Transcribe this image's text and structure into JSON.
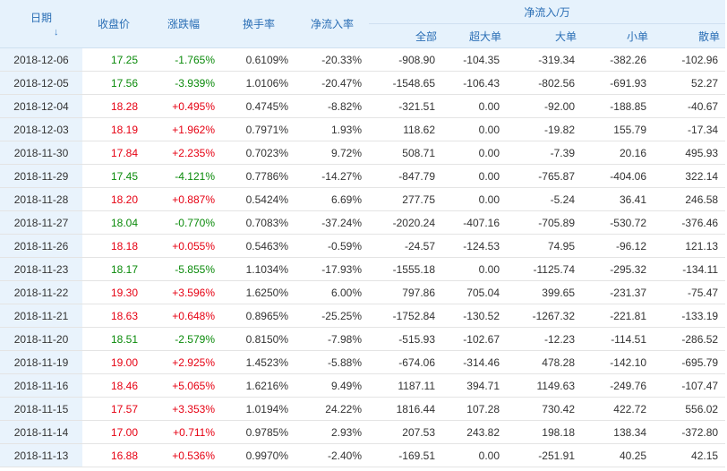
{
  "headers": {
    "date": "日期",
    "sort_icon": "↓",
    "close": "收盘价",
    "change": "涨跌幅",
    "turnover": "换手率",
    "net_ratio": "净流入率",
    "net_group": "净流入/万",
    "all": "全部",
    "xlarge": "超大单",
    "large": "大单",
    "small": "小单",
    "retail": "散单"
  },
  "colors": {
    "up": "#e60012",
    "down": "#0a8a0a",
    "header_bg": "#e6f2fc",
    "header_text": "#2a6eb5"
  },
  "rows": [
    {
      "date": "2018-12-06",
      "close": "17.25",
      "change": "-1.765%",
      "turnover": "0.6109%",
      "ratio": "-20.33%",
      "all": "-908.90",
      "xl": "-104.35",
      "l": "-319.34",
      "s": "-382.26",
      "r": "-102.96",
      "dir": "down"
    },
    {
      "date": "2018-12-05",
      "close": "17.56",
      "change": "-3.939%",
      "turnover": "1.0106%",
      "ratio": "-20.47%",
      "all": "-1548.65",
      "xl": "-106.43",
      "l": "-802.56",
      "s": "-691.93",
      "r": "52.27",
      "dir": "down"
    },
    {
      "date": "2018-12-04",
      "close": "18.28",
      "change": "+0.495%",
      "turnover": "0.4745%",
      "ratio": "-8.82%",
      "all": "-321.51",
      "xl": "0.00",
      "l": "-92.00",
      "s": "-188.85",
      "r": "-40.67",
      "dir": "up"
    },
    {
      "date": "2018-12-03",
      "close": "18.19",
      "change": "+1.962%",
      "turnover": "0.7971%",
      "ratio": "1.93%",
      "all": "118.62",
      "xl": "0.00",
      "l": "-19.82",
      "s": "155.79",
      "r": "-17.34",
      "dir": "up"
    },
    {
      "date": "2018-11-30",
      "close": "17.84",
      "change": "+2.235%",
      "turnover": "0.7023%",
      "ratio": "9.72%",
      "all": "508.71",
      "xl": "0.00",
      "l": "-7.39",
      "s": "20.16",
      "r": "495.93",
      "dir": "up"
    },
    {
      "date": "2018-11-29",
      "close": "17.45",
      "change": "-4.121%",
      "turnover": "0.7786%",
      "ratio": "-14.27%",
      "all": "-847.79",
      "xl": "0.00",
      "l": "-765.87",
      "s": "-404.06",
      "r": "322.14",
      "dir": "down"
    },
    {
      "date": "2018-11-28",
      "close": "18.20",
      "change": "+0.887%",
      "turnover": "0.5424%",
      "ratio": "6.69%",
      "all": "277.75",
      "xl": "0.00",
      "l": "-5.24",
      "s": "36.41",
      "r": "246.58",
      "dir": "up"
    },
    {
      "date": "2018-11-27",
      "close": "18.04",
      "change": "-0.770%",
      "turnover": "0.7083%",
      "ratio": "-37.24%",
      "all": "-2020.24",
      "xl": "-407.16",
      "l": "-705.89",
      "s": "-530.72",
      "r": "-376.46",
      "dir": "down"
    },
    {
      "date": "2018-11-26",
      "close": "18.18",
      "change": "+0.055%",
      "turnover": "0.5463%",
      "ratio": "-0.59%",
      "all": "-24.57",
      "xl": "-124.53",
      "l": "74.95",
      "s": "-96.12",
      "r": "121.13",
      "dir": "up"
    },
    {
      "date": "2018-11-23",
      "close": "18.17",
      "change": "-5.855%",
      "turnover": "1.1034%",
      "ratio": "-17.93%",
      "all": "-1555.18",
      "xl": "0.00",
      "l": "-1125.74",
      "s": "-295.32",
      "r": "-134.11",
      "dir": "down"
    },
    {
      "date": "2018-11-22",
      "close": "19.30",
      "change": "+3.596%",
      "turnover": "1.6250%",
      "ratio": "6.00%",
      "all": "797.86",
      "xl": "705.04",
      "l": "399.65",
      "s": "-231.37",
      "r": "-75.47",
      "dir": "up"
    },
    {
      "date": "2018-11-21",
      "close": "18.63",
      "change": "+0.648%",
      "turnover": "0.8965%",
      "ratio": "-25.25%",
      "all": "-1752.84",
      "xl": "-130.52",
      "l": "-1267.32",
      "s": "-221.81",
      "r": "-133.19",
      "dir": "up"
    },
    {
      "date": "2018-11-20",
      "close": "18.51",
      "change": "-2.579%",
      "turnover": "0.8150%",
      "ratio": "-7.98%",
      "all": "-515.93",
      "xl": "-102.67",
      "l": "-12.23",
      "s": "-114.51",
      "r": "-286.52",
      "dir": "down"
    },
    {
      "date": "2018-11-19",
      "close": "19.00",
      "change": "+2.925%",
      "turnover": "1.4523%",
      "ratio": "-5.88%",
      "all": "-674.06",
      "xl": "-314.46",
      "l": "478.28",
      "s": "-142.10",
      "r": "-695.79",
      "dir": "up"
    },
    {
      "date": "2018-11-16",
      "close": "18.46",
      "change": "+5.065%",
      "turnover": "1.6216%",
      "ratio": "9.49%",
      "all": "1187.11",
      "xl": "394.71",
      "l": "1149.63",
      "s": "-249.76",
      "r": "-107.47",
      "dir": "up"
    },
    {
      "date": "2018-11-15",
      "close": "17.57",
      "change": "+3.353%",
      "turnover": "1.0194%",
      "ratio": "24.22%",
      "all": "1816.44",
      "xl": "107.28",
      "l": "730.42",
      "s": "422.72",
      "r": "556.02",
      "dir": "up"
    },
    {
      "date": "2018-11-14",
      "close": "17.00",
      "change": "+0.711%",
      "turnover": "0.9785%",
      "ratio": "2.93%",
      "all": "207.53",
      "xl": "243.82",
      "l": "198.18",
      "s": "138.34",
      "r": "-372.80",
      "dir": "up"
    },
    {
      "date": "2018-11-13",
      "close": "16.88",
      "change": "+0.536%",
      "turnover": "0.9970%",
      "ratio": "-2.40%",
      "all": "-169.51",
      "xl": "0.00",
      "l": "-251.91",
      "s": "40.25",
      "r": "42.15",
      "dir": "up"
    }
  ]
}
